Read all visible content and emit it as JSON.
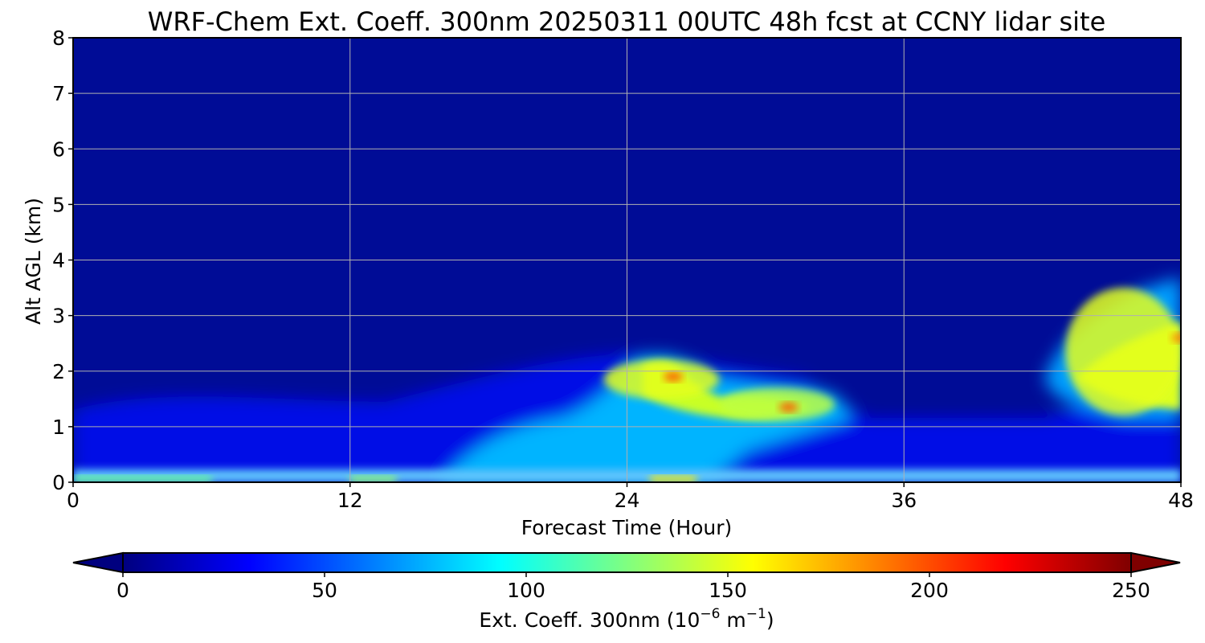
{
  "chart_data": {
    "type": "heatmap",
    "title": "WRF-Chem Ext. Coeff. 300nm  20250311 00UTC 48h fcst at CCNY lidar site",
    "xlabel": "Forecast Time (Hour)",
    "ylabel": "Alt AGL (km)",
    "xlim": [
      0,
      48
    ],
    "ylim": [
      0,
      8
    ],
    "xticks": [
      0,
      12,
      24,
      36,
      48
    ],
    "yticks": [
      0,
      1,
      2,
      3,
      4,
      5,
      6,
      7,
      8
    ],
    "grid": true,
    "colormap": "jet",
    "colorbar": {
      "label_text": "Ext. Coeff. 300nm  (10",
      "label_exp1": "−6",
      "label_mid": " m",
      "label_exp2": "−1",
      "label_close": ")",
      "range": [
        0,
        250
      ],
      "ticks": [
        0,
        50,
        100,
        150,
        200,
        250
      ],
      "extend": "both",
      "colors": [
        "#00007f",
        "#0000ff",
        "#00bfff",
        "#2affd4",
        "#ffff00",
        "#ff8000",
        "#ff0000",
        "#7f0000"
      ]
    },
    "background_value": 6,
    "features": [
      {
        "name": "surface layer",
        "x": [
          0,
          48
        ],
        "y": [
          0,
          0.12
        ],
        "value": 45
      },
      {
        "name": "near-surface max t0-t6",
        "x": [
          0,
          6
        ],
        "y": [
          0,
          0.08
        ],
        "value": 120
      },
      {
        "name": "near-surface max t12-t14",
        "x": [
          12,
          14
        ],
        "y": [
          0,
          0.08
        ],
        "value": 130
      },
      {
        "name": "near-surface max t25-t27",
        "x": [
          25,
          27
        ],
        "y": [
          0,
          0.08
        ],
        "value": 160
      },
      {
        "name": "low plume t18-t24",
        "x": [
          18,
          24
        ],
        "y": [
          0,
          0.6
        ],
        "value": 85
      },
      {
        "name": "elevated plume t24-t27",
        "x": [
          23,
          28
        ],
        "y": [
          1.5,
          2.2
        ],
        "value": 150
      },
      {
        "name": "elevated peak t26",
        "x": [
          26,
          26
        ],
        "y": [
          1.9,
          1.9
        ],
        "value": 200
      },
      {
        "name": "elevated plume t29-t33",
        "x": [
          28,
          33
        ],
        "y": [
          1.1,
          1.7
        ],
        "value": 140
      },
      {
        "name": "elevated peak t31",
        "x": [
          31,
          31
        ],
        "y": [
          1.35,
          1.35
        ],
        "value": 200
      },
      {
        "name": "elevated plume t43-t48",
        "x": [
          43,
          48
        ],
        "y": [
          1.2,
          3.5
        ],
        "value": 150
      },
      {
        "name": "elevated peak t48",
        "x": [
          48,
          48
        ],
        "y": [
          2.6,
          2.6
        ],
        "value": 190
      }
    ]
  }
}
